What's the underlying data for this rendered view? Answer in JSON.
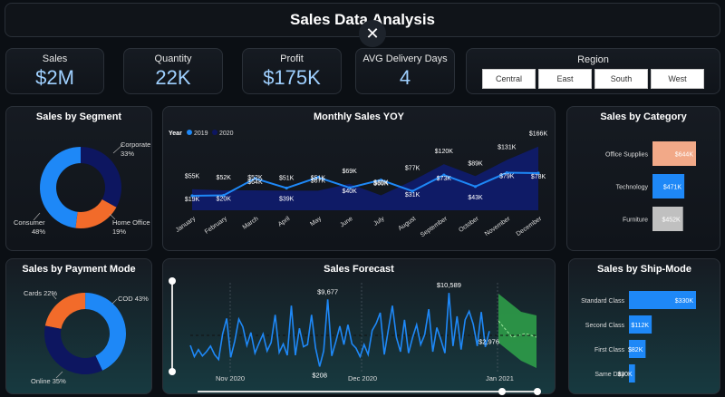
{
  "header": {
    "title": "Sales Data Analysis",
    "close_glyph": "✕"
  },
  "kpis": [
    {
      "label": "Sales",
      "value": "$2M"
    },
    {
      "label": "Quantity",
      "value": "22K"
    },
    {
      "label": "Profit",
      "value": "$175K"
    },
    {
      "label": "AVG Delivery Days",
      "value": "4"
    }
  ],
  "region": {
    "label": "Region",
    "options": [
      "Central",
      "East",
      "South",
      "West"
    ]
  },
  "colors": {
    "accent": "#1e88f7",
    "navy": "#0d1660",
    "orange": "#f26b2a",
    "peach": "#f2a988",
    "gray": "#c0c0c0",
    "forecast": "#2fa34a"
  },
  "segment": {
    "title": "Sales by Segment",
    "labels": [
      {
        "name": "Corporate",
        "pct": "33%"
      },
      {
        "name": "Home Office",
        "pct": "19%"
      },
      {
        "name": "Consumer",
        "pct": "48%"
      }
    ]
  },
  "payment": {
    "title": "Sales by Payment Mode",
    "labels": [
      {
        "text": "Cards 22%"
      },
      {
        "text": "COD 43%"
      },
      {
        "text": "Online 35%"
      }
    ]
  },
  "category": {
    "title": "Sales by Category",
    "items": [
      {
        "name": "Office Supplies",
        "label": "$644K"
      },
      {
        "name": "Technology",
        "label": "$471K"
      },
      {
        "name": "Furniture",
        "label": "$452K"
      }
    ]
  },
  "shipmode": {
    "title": "Sales by Ship-Mode",
    "items": [
      {
        "name": "Standard Class",
        "label": "$330K"
      },
      {
        "name": "Second Class",
        "label": "$112K"
      },
      {
        "name": "First Class",
        "label": "$82K"
      },
      {
        "name": "Same Day",
        "label": "$30K"
      }
    ]
  },
  "monthly": {
    "title": "Monthly Sales YOY",
    "legend_title": "Year",
    "legend": [
      "2019",
      "2020"
    ],
    "labels_2019": [
      "$55K",
      "$52K",
      "$52K",
      "$51K",
      "$51K",
      "$69K",
      "$39K",
      "$77K",
      "$120K",
      "$89K",
      "$131K",
      "$166K"
    ],
    "labels_2020": [
      "$19K",
      "$20K",
      "$64K",
      "$39K",
      "$67K",
      "$40K",
      "$60K",
      "$31K",
      "$73K",
      "$43K",
      "$79K",
      "$78K"
    ]
  },
  "forecast": {
    "title": "Sales Forecast",
    "axis": [
      "Nov 2020",
      "Dec 2020",
      "Jan 2021"
    ],
    "annotations": [
      "$9,677",
      "$208",
      "$10,589",
      "$2,976"
    ]
  },
  "chart_data": [
    {
      "type": "pie",
      "title": "Sales by Segment",
      "labels": [
        "Corporate",
        "Home Office",
        "Consumer"
      ],
      "values": [
        33,
        19,
        48
      ]
    },
    {
      "type": "pie",
      "title": "Sales by Payment Mode",
      "labels": [
        "Cards",
        "COD",
        "Online"
      ],
      "values": [
        22,
        43,
        35
      ]
    },
    {
      "type": "bar",
      "title": "Sales by Category",
      "categories": [
        "Office Supplies",
        "Technology",
        "Furniture"
      ],
      "values": [
        644,
        471,
        452
      ]
    },
    {
      "type": "bar",
      "title": "Sales by Ship-Mode",
      "categories": [
        "Standard Class",
        "Second Class",
        "First Class",
        "Same Day"
      ],
      "values": [
        330,
        112,
        82,
        30
      ]
    },
    {
      "type": "area",
      "title": "Monthly Sales YOY",
      "categories": [
        "January",
        "February",
        "March",
        "April",
        "May",
        "June",
        "July",
        "August",
        "September",
        "October",
        "November",
        "December"
      ],
      "series": [
        {
          "name": "2019",
          "values": [
            55,
            52,
            52,
            51,
            51,
            69,
            39,
            77,
            120,
            89,
            131,
            166
          ]
        },
        {
          "name": "2020",
          "values": [
            19,
            20,
            64,
            39,
            67,
            40,
            60,
            31,
            73,
            43,
            79,
            78
          ]
        }
      ]
    },
    {
      "type": "line",
      "title": "Sales Forecast",
      "series": [
        {
          "values": [
            3200,
            1600,
            2600,
            1700,
            2300,
            3100,
            1900,
            1200,
            4800,
            7000,
            1500,
            3800,
            6900,
            5800,
            3200,
            5000,
            2100,
            3500,
            4800,
            2400,
            3600,
            7500,
            2200,
            3400,
            1800,
            8800,
            1800,
            5600,
            3000,
            3300,
            7500,
            2800,
            208,
            2400,
            9677,
            1700,
            3700,
            5900,
            3300,
            6100,
            3400,
            2800,
            1600,
            3300,
            1900,
            5300,
            6300,
            7800,
            1900,
            5400,
            8800,
            4300,
            2300,
            6800,
            2100,
            4300,
            6100,
            3300,
            4700,
            8300,
            2300,
            5700,
            4000,
            2100,
            10589,
            3100,
            7300,
            2600,
            6800,
            8000,
            6200,
            3100,
            7900,
            2976,
            5200
          ]
        }
      ]
    }
  ]
}
